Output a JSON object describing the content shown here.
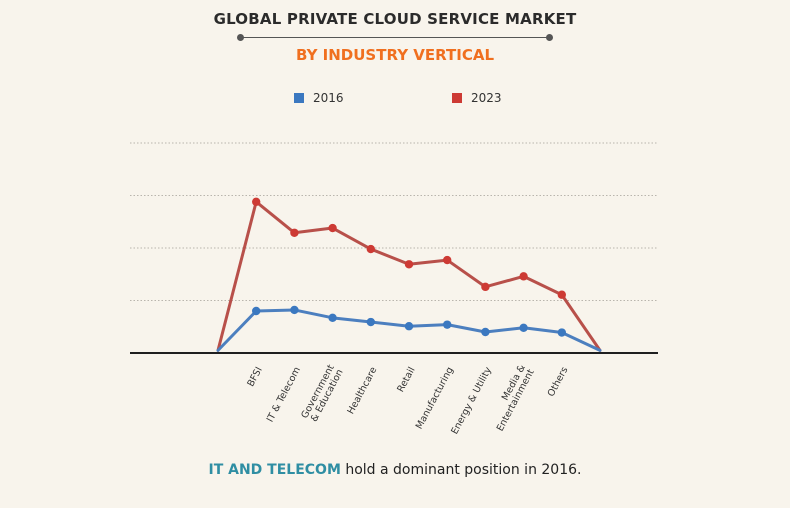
{
  "header": {
    "title": "GLOBAL PRIVATE CLOUD SERVICE MARKET",
    "subtitle": "BY INDUSTRY VERTICAL"
  },
  "caption": {
    "highlight": "IT AND TELECOM",
    "rest": " hold a dominant position in 2016."
  },
  "colors": {
    "series_2016": "#3b78c0",
    "series_2023": "#cd3a34",
    "line_2016": "#4c7fbf",
    "line_2023": "#b8504a",
    "title": "#2b2b2b",
    "subtitle": "#f06f1f",
    "caption_highlight": "#2f8ea3"
  },
  "chart_data": {
    "type": "line",
    "title": "GLOBAL PRIVATE CLOUD SERVICE MARKET",
    "subtitle": "BY INDUSTRY VERTICAL",
    "xlabel": "",
    "ylabel": "",
    "grid": true,
    "legend_position": "top-center",
    "y_tick_labels_shown": false,
    "ylim": [
      0,
      4
    ],
    "categories": [
      "",
      "BFSI",
      "IT & Telecom",
      "Government\n& Education",
      "Healthcare",
      "Retail",
      "Manufacturing",
      "Energy & Utility",
      "Media &\nEntertainment",
      "Others",
      ""
    ],
    "series": [
      {
        "name": "2016",
        "values": [
          0.05,
          0.8,
          0.82,
          0.67,
          0.59,
          0.51,
          0.54,
          0.4,
          0.48,
          0.39,
          0.05
        ]
      },
      {
        "name": "2023",
        "values": [
          0.05,
          2.88,
          2.29,
          2.38,
          1.98,
          1.69,
          1.77,
          1.26,
          1.46,
          1.11,
          0.05
        ]
      }
    ]
  }
}
